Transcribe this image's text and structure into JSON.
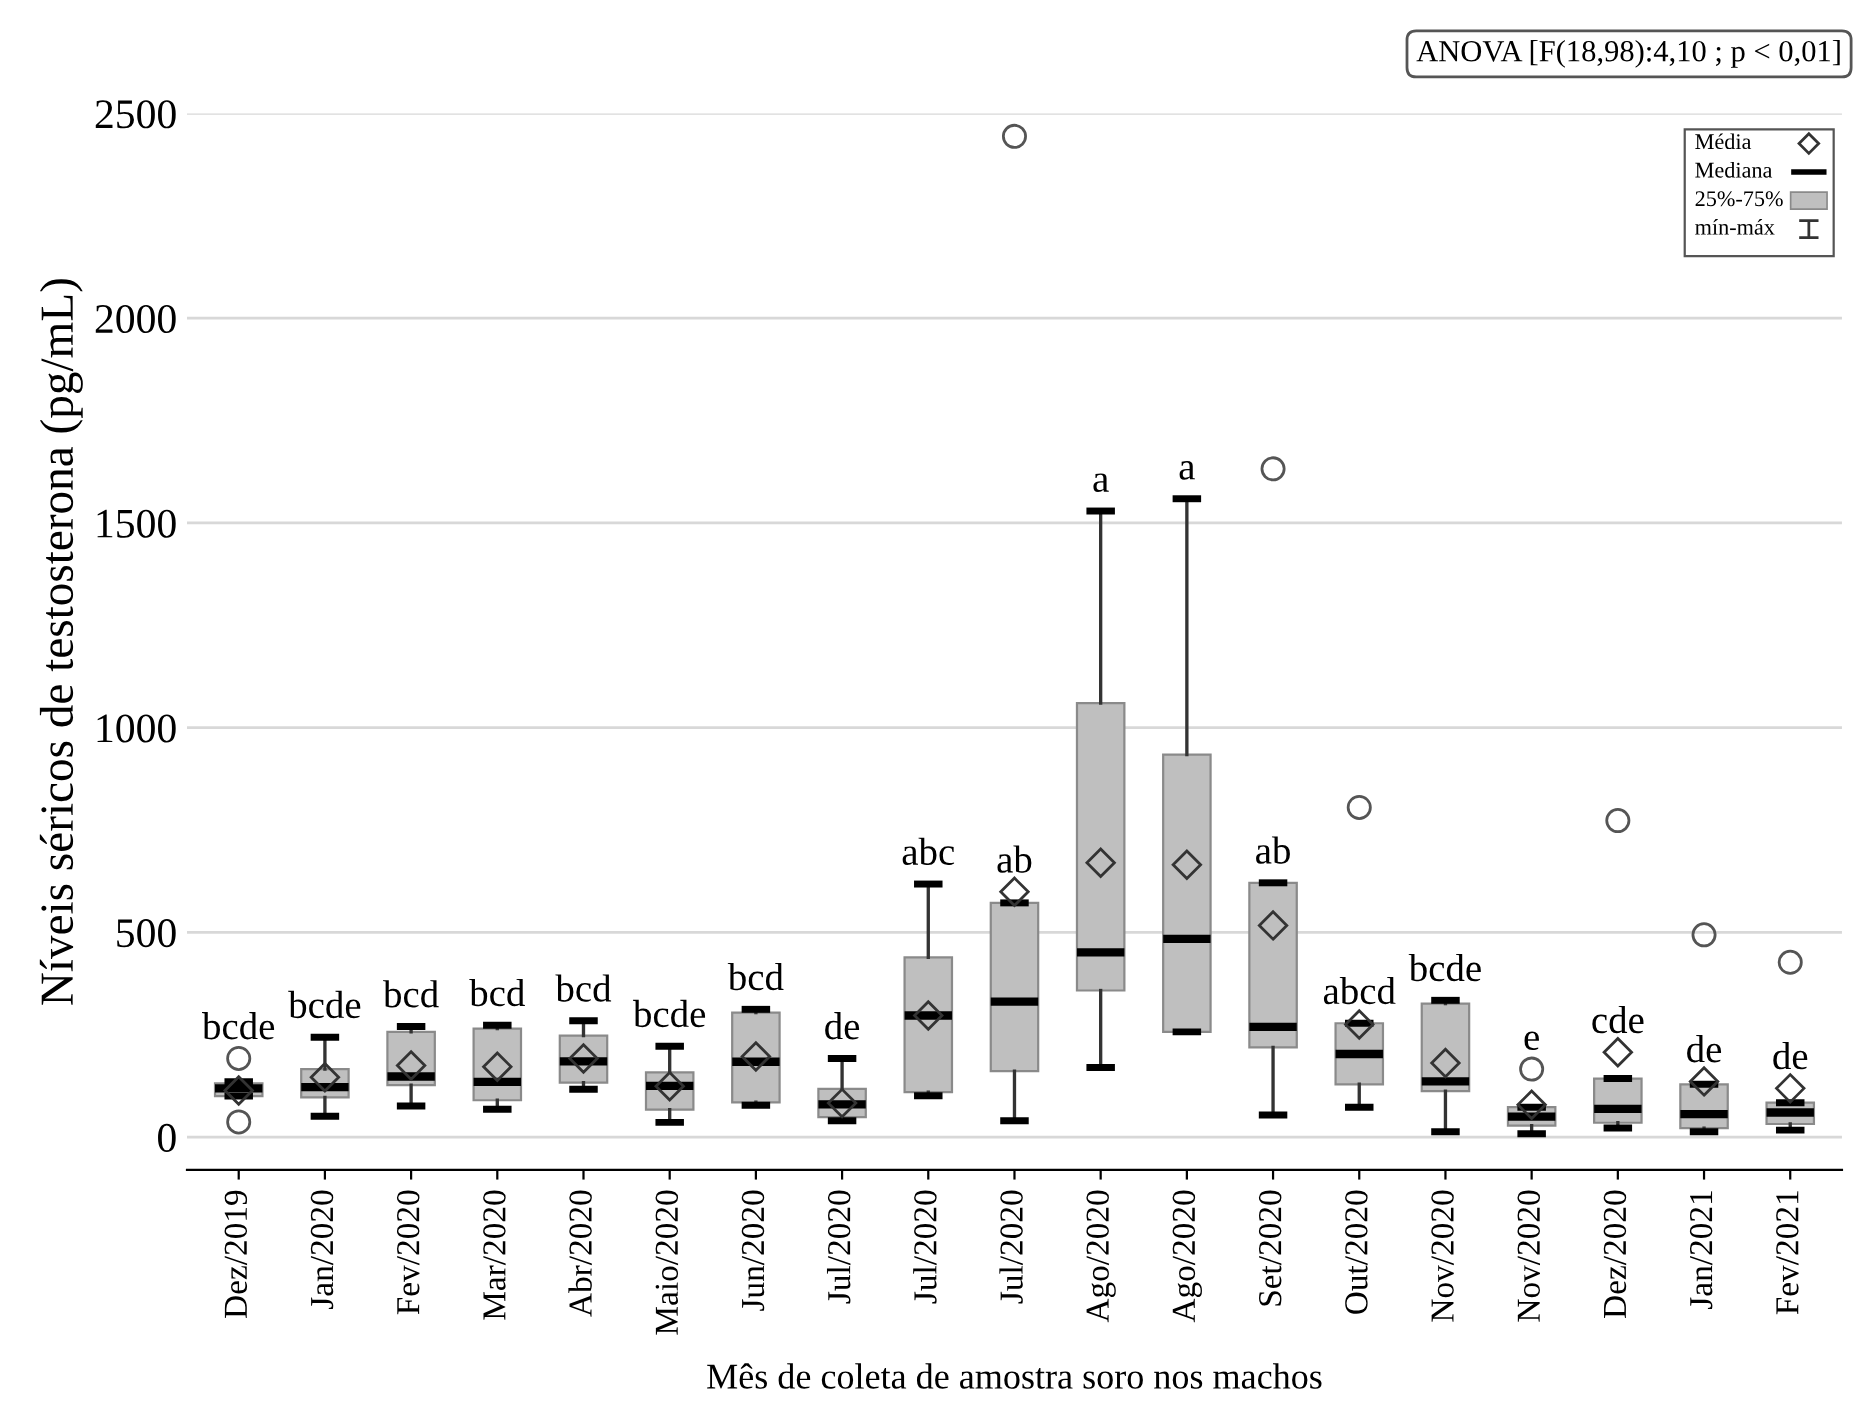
{
  "chart_data": {
    "type": "box",
    "xlabel": "Mês de coleta de amostra soro nos machos",
    "ylabel": "Níveis séricos de testosterona (pg/mL)",
    "categories": [
      "Dez/2019",
      "Jan/2020",
      "Fev/2020",
      "Mar/2020",
      "Abr/2020",
      "Maio/2020",
      "Jun/2020",
      "Jul/2020",
      "Jul/2020",
      "Jul/2020",
      "Ago/2020",
      "Ago/2020",
      "Set/2020",
      "Out/2020",
      "Nov/2020",
      "Nov/2020",
      "Dez/2020",
      "Jan/2021",
      "Fev/2021"
    ],
    "series": [
      {
        "color": "#bfbfbf",
        "boxes": [
          {
            "low": 100,
            "q1": 100,
            "median": 119,
            "q3": 131,
            "high": 135,
            "mean": 114,
            "outliers": [
              192,
              37
            ]
          },
          {
            "low": 51,
            "q1": 97,
            "median": 122,
            "q3": 166,
            "high": 244,
            "mean": 146
          },
          {
            "low": 76,
            "q1": 127,
            "median": 148,
            "q3": 257,
            "high": 270,
            "mean": 175
          },
          {
            "low": 68,
            "q1": 90,
            "median": 135,
            "q3": 265,
            "high": 273,
            "mean": 172
          },
          {
            "low": 117,
            "q1": 133,
            "median": 185,
            "q3": 248,
            "high": 284,
            "mean": 192
          },
          {
            "low": 36,
            "q1": 67,
            "median": 125,
            "q3": 158,
            "high": 222,
            "mean": 124
          },
          {
            "low": 78,
            "q1": 85,
            "median": 184,
            "q3": 304,
            "high": 312,
            "mean": 197
          },
          {
            "low": 40,
            "q1": 49,
            "median": 80,
            "q3": 118,
            "high": 192,
            "mean": 83
          },
          {
            "low": 101,
            "q1": 110,
            "median": 297,
            "q3": 439,
            "high": 618,
            "mean": 297
          },
          {
            "low": 40,
            "q1": 161,
            "median": 331,
            "q3": 572,
            "high": 572,
            "mean": 599,
            "outliers": [
              2444
            ]
          },
          {
            "low": 170,
            "q1": 358,
            "median": 451,
            "q3": 1060,
            "high": 1529,
            "mean": 670
          },
          {
            "low": 257,
            "q1": 257,
            "median": 484,
            "q3": 934,
            "high": 1559,
            "mean": 665
          },
          {
            "low": 54,
            "q1": 219,
            "median": 269,
            "q3": 621,
            "high": 621,
            "mean": 517,
            "outliers": [
              1632
            ]
          },
          {
            "low": 73,
            "q1": 129,
            "median": 203,
            "q3": 278,
            "high": 278,
            "mean": 275,
            "outliers": [
              805
            ]
          },
          {
            "low": 13,
            "q1": 112,
            "median": 136,
            "q3": 326,
            "high": 334,
            "mean": 181
          },
          {
            "low": 8,
            "q1": 28,
            "median": 50,
            "q3": 73,
            "high": 73,
            "mean": 79,
            "outliers": [
              166
            ]
          },
          {
            "low": 22,
            "q1": 35,
            "median": 69,
            "q3": 143,
            "high": 143,
            "mean": 207,
            "outliers": [
              773
            ]
          },
          {
            "low": 13,
            "q1": 22,
            "median": 56,
            "q3": 129,
            "high": 129,
            "mean": 136,
            "outliers": [
              494
            ]
          },
          {
            "low": 17,
            "q1": 32,
            "median": 60,
            "q3": 84,
            "high": 84,
            "mean": 119,
            "outliers": [
              427
            ]
          }
        ]
      }
    ],
    "ylim": [
      -80,
      2500
    ],
    "yticks": [
      0,
      500,
      1000,
      1500,
      2000,
      2500
    ],
    "grid": "y",
    "marker": "diamond",
    "annotations": [
      "bcde",
      "bcde",
      "bcd",
      "bcd",
      "bcd",
      "bcde",
      "bcd",
      "de",
      "abc",
      "ab",
      "a",
      "a",
      "ab",
      "abcd",
      "bcde",
      "e",
      "cde",
      "de",
      "de",
      "ANOVA [F(18,98):4,10 ; p < 0,01]",
      "Média",
      "Mediana",
      "25%-75%",
      "mín-máx"
    ]
  }
}
